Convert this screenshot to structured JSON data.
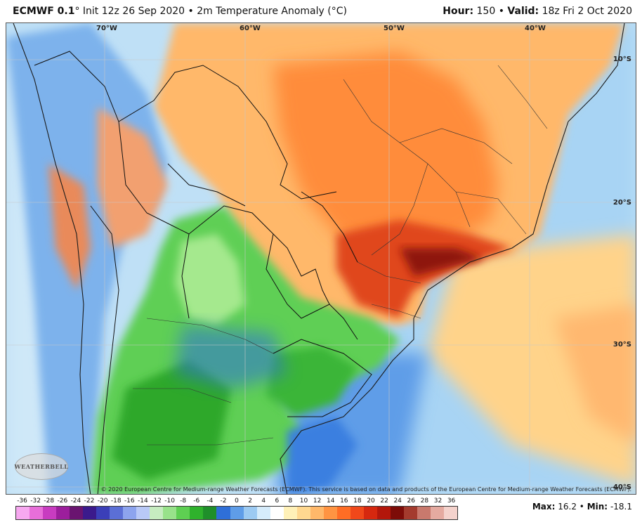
{
  "header": {
    "model": "ECMWF 0.1",
    "degree": "°",
    "init": "Init 12z 26 Sep 2020",
    "sep": "•",
    "field": "2m Temperature Anomaly (°C)",
    "hour_label": "Hour:",
    "hour_value": "150",
    "valid_label": "Valid:",
    "valid_value": "18z Fri 2 Oct 2020"
  },
  "grid_labels": {
    "lon": [
      "70°W",
      "60°W",
      "50°W",
      "40°W"
    ],
    "lat": [
      "10°S",
      "20°S",
      "30°S",
      "40°S"
    ]
  },
  "logo_text": "WEATHERBELL",
  "copyright": "© 2020 European Centre for Medium-range Weather Forecasts (ECMWF). This service is based on data and products of the European Centre for Medium-range Weather Forecasts (ECMWF).",
  "colorbar": {
    "ticks": [
      "-36",
      "-32",
      "-28",
      "-26",
      "-24",
      "-22",
      "-20",
      "-18",
      "-16",
      "-14",
      "-12",
      "-10",
      "-8",
      "-6",
      "-4",
      "-2",
      "0",
      "2",
      "4",
      "6",
      "8",
      "10",
      "12",
      "14",
      "16",
      "18",
      "20",
      "22",
      "24",
      "26",
      "28",
      "32",
      "36"
    ],
    "colors": [
      "#f7a8f0",
      "#e86ed9",
      "#c83cc0",
      "#9c1e9c",
      "#6a1470",
      "#3b1a8c",
      "#3b3fb8",
      "#5b6fd6",
      "#8da4ee",
      "#b9c9f7",
      "#c6ecc0",
      "#98e28a",
      "#5ecf52",
      "#2fb22c",
      "#1f8f2a",
      "#2f6fd8",
      "#5f9de8",
      "#9ccaf2",
      "#d6ecfb",
      "#ffffff",
      "#fff1b8",
      "#ffd890",
      "#ffb86a",
      "#ff9442",
      "#ff6d25",
      "#f0481a",
      "#d6280f",
      "#b3170b",
      "#7d0c08",
      "#a43b2e",
      "#c9796d",
      "#e5aaa0",
      "#f4d2cc"
    ]
  },
  "stats": {
    "max_label": "Max:",
    "max_value": "16.2",
    "sep": "•",
    "min_label": "Min:",
    "min_value": "-18.1"
  }
}
